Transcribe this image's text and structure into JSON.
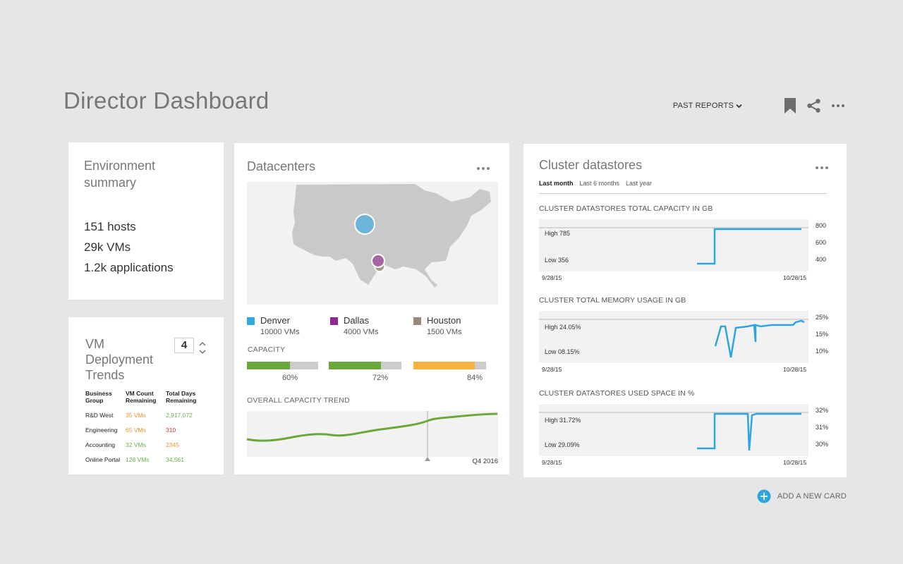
{
  "header": {
    "title": "Director Dashboard",
    "past_reports": "PAST REPORTS"
  },
  "environment": {
    "title": "Environment summary",
    "stats": [
      "151 hosts",
      "29k VMs",
      "1.2k applications"
    ]
  },
  "vm_deployment": {
    "title": "VM Deployment Trends",
    "stepper_value": "4",
    "headers": [
      "Business Group",
      "VM Count Remaining",
      "Total Days Remaining"
    ],
    "rows": [
      {
        "group": "R&D West",
        "count": "35 VMs",
        "days": "2,917,072",
        "count_color": "#f0932b",
        "days_color": "#6ab04c"
      },
      {
        "group": "Engineering",
        "count": "65 VMs",
        "days": "310",
        "count_color": "#f0932b",
        "days_color": "#e52e2e"
      },
      {
        "group": "Accounting",
        "count": "32 VMs",
        "days": "2345",
        "count_color": "#6ab04c",
        "days_color": "#f0932b"
      },
      {
        "group": "Online Portal",
        "count": "128 VMs",
        "days": "34,561",
        "count_color": "#6ab04c",
        "days_color": "#6ab04c"
      }
    ]
  },
  "datacenters": {
    "title": "Datacenters",
    "locations": [
      {
        "name": "Denver",
        "vms": "10000 VMs",
        "color": "#34aadc"
      },
      {
        "name": "Dallas",
        "vms": "4000 VMs",
        "color": "#8e2a8e"
      },
      {
        "name": "Houston",
        "vms": "1500 VMs",
        "color": "#9a8878"
      }
    ],
    "capacity_label": "CAPACITY",
    "capacity": [
      {
        "pct_label": "60%",
        "fraction": 0.6,
        "color": "#6aa83c"
      },
      {
        "pct_label": "72%",
        "fraction": 0.72,
        "color": "#6aa83c"
      },
      {
        "pct_label": "84%",
        "fraction": 0.84,
        "color": "#f7b13e"
      }
    ],
    "trend_label": "OVERALL CAPACITY TREND",
    "trend_marker": "Q4 2016",
    "colors": {
      "trend": "#6aa83c"
    }
  },
  "cluster": {
    "title": "Cluster datastores",
    "tabs": [
      "Last month",
      "Last 6 months",
      "Last year"
    ],
    "charts": [
      {
        "title": "CLUSTER DATASTORES TOTAL CAPACITY IN GB",
        "high": "High 785",
        "low": "Low 356",
        "ticks": [
          "800",
          "600",
          "400"
        ],
        "start": "9/28/15",
        "end": "10/28/15"
      },
      {
        "title": "CLUSTER TOTAL MEMORY USAGE IN GB",
        "high": "High 24.05%",
        "low": "Low 08.15%",
        "ticks": [
          "25%",
          "15%",
          "10%"
        ],
        "start": "9/28/15",
        "end": "10/28/15"
      },
      {
        "title": "CLUSTER DATASTORES USED SPACE IN %",
        "high": "High 31.72%",
        "low": "Low 29.09%",
        "ticks": [
          "32%",
          "31%",
          "30%"
        ],
        "start": "9/28/15",
        "end": "10/28/15"
      }
    ],
    "colors": {
      "line": "#2ea6dd"
    }
  },
  "add_card": "ADD A NEW CARD"
}
